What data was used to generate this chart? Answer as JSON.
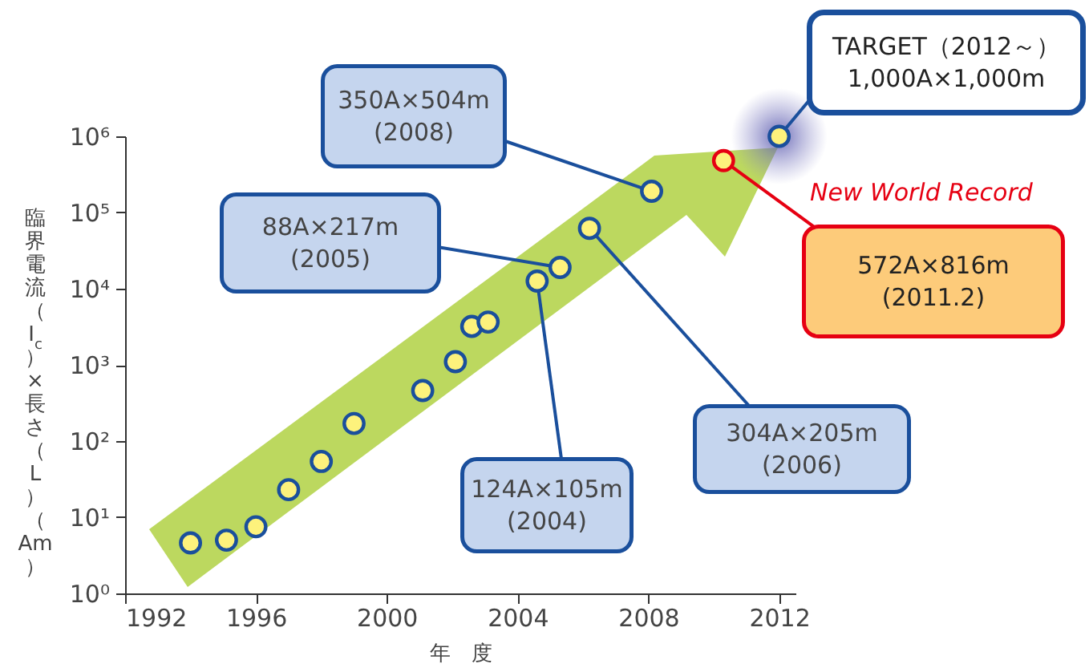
{
  "chart_data": {
    "type": "scatter",
    "xlabel": "年　度",
    "ylabel": "臨界電流（I$_{c}$）×長さ（L）（Am）",
    "xlim": [
      1992,
      2012.5
    ],
    "xticks": [
      1992,
      1996,
      2000,
      2004,
      2008,
      2012
    ],
    "ylim": [
      1,
      1000000
    ],
    "yticks": [
      {
        "value": 1,
        "label": "10⁰"
      },
      {
        "value": 10,
        "label": "10¹"
      },
      {
        "value": 100,
        "label": "10²"
      },
      {
        "value": 1000,
        "label": "10³"
      },
      {
        "value": 10000,
        "label": "10⁴"
      },
      {
        "value": 100000,
        "label": "10⁵"
      },
      {
        "value": 1000000,
        "label": "10⁶"
      }
    ],
    "log": "y",
    "grid": false,
    "marker": "circle",
    "series": [
      {
        "color": "#1a4f9c",
        "x": [
          1994.0,
          1995.1,
          1996.0,
          1997.0,
          1998.0,
          1999.0,
          2001.1,
          2002.1,
          2002.6,
          2003.1,
          2004.6,
          2005.3,
          2006.2,
          2008.1
        ],
        "values": [
          4.6,
          5,
          7.5,
          23,
          54,
          170,
          460,
          1100,
          3200,
          3650,
          12600,
          19000,
          62000,
          190000
        ]
      },
      {
        "color": "#e60012",
        "x": [
          2010.3
        ],
        "values": [
          480000
        ]
      },
      {
        "color": "#1a4f9c",
        "x": [
          2012.0
        ],
        "values": [
          1000000
        ]
      }
    ],
    "annotations": [
      {
        "text": "350A×504m\n(2008)",
        "x": 2008.1,
        "y": 190000
      },
      {
        "text": "88A×217m\n(2005)",
        "x": 2005.3,
        "y": 19000
      },
      {
        "text": "124A×105m\n(2004)",
        "x": 2004.6,
        "y": 12600
      },
      {
        "text": "304A×205m\n(2006)",
        "x": 2006.2,
        "y": 62000
      },
      {
        "text": "TARGET（2012～）\n1,000A×1,000m",
        "x": 2012.0,
        "y": 1000000
      },
      "New World Record",
      {
        "text": "572A×816m\n(2011.2)",
        "x": 2010.3,
        "y": 480000
      }
    ]
  }
}
